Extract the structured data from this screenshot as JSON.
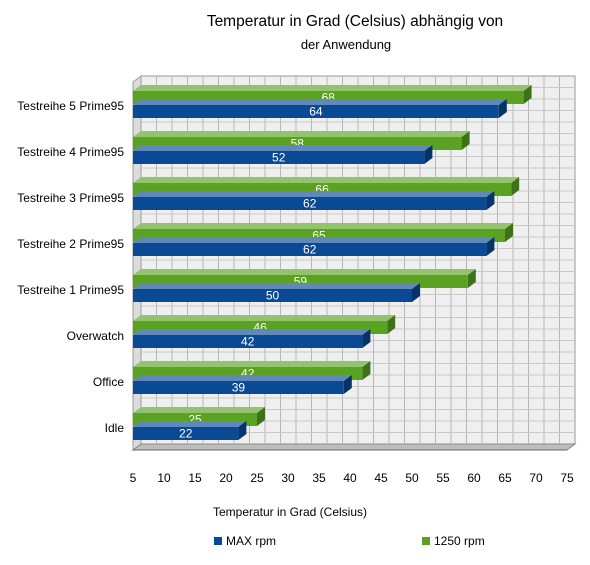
{
  "chart_data": {
    "type": "bar",
    "orientation": "horizontal",
    "title": "Temperatur in Grad (Celsius) abhängig von",
    "subtitle": "der Anwendung",
    "xlabel": "Temperatur in Grad (Celsius)",
    "ylabel": "",
    "xlim": [
      5,
      75
    ],
    "ticks": [
      "5",
      "10",
      "15",
      "20",
      "25",
      "30",
      "35",
      "40",
      "45",
      "50",
      "55",
      "60",
      "65",
      "70",
      "75"
    ],
    "tick_values": [
      5,
      10,
      15,
      20,
      25,
      30,
      35,
      40,
      45,
      50,
      55,
      60,
      65,
      70,
      75
    ],
    "grid": true,
    "style": "3d",
    "legend_position": "bottom",
    "categories": [
      "Testreihe 5 Prime95",
      "Testreihe 4 Prime95",
      "Testreihe 3 Prime95",
      "Testreihe 2 Prime95",
      "Testreihe 1 Prime95",
      "Overwatch",
      "Office",
      "Idle"
    ],
    "series": [
      {
        "name": "MAX rpm",
        "color": "#0a4a94",
        "values": [
          64,
          52,
          62,
          62,
          50,
          42,
          39,
          22
        ],
        "labels": [
          "64",
          "52",
          "62",
          "62",
          "50",
          "42",
          "39",
          "22"
        ]
      },
      {
        "name": "1250 rpm",
        "color": "#5aa322",
        "values": [
          68,
          58,
          66,
          65,
          59,
          46,
          42,
          25
        ],
        "labels": [
          "68",
          "58",
          "66",
          "65",
          "59",
          "46",
          "42",
          "25"
        ]
      }
    ]
  }
}
